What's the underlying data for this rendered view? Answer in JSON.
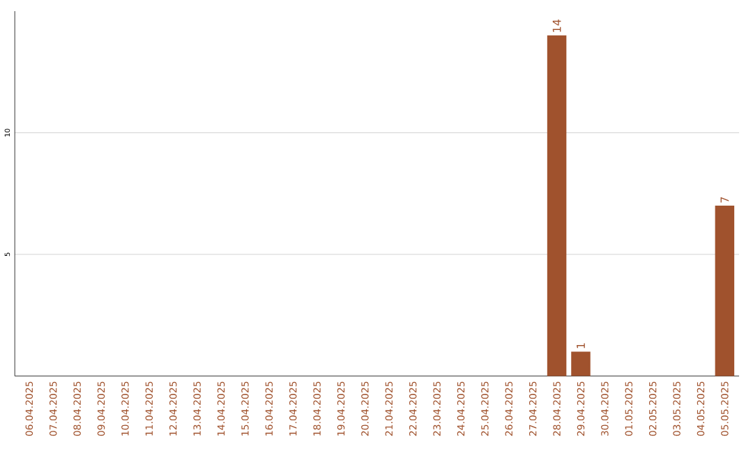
{
  "chart_data": {
    "type": "bar",
    "categories": [
      "06.04.2025",
      "07.04.2025",
      "08.04.2025",
      "09.04.2025",
      "10.04.2025",
      "11.04.2025",
      "12.04.2025",
      "13.04.2025",
      "14.04.2025",
      "15.04.2025",
      "16.04.2025",
      "17.04.2025",
      "18.04.2025",
      "19.04.2025",
      "20.04.2025",
      "21.04.2025",
      "22.04.2025",
      "23.04.2025",
      "24.04.2025",
      "25.04.2025",
      "26.04.2025",
      "27.04.2025",
      "28.04.2025",
      "29.04.2025",
      "30.04.2025",
      "01.05.2025",
      "02.05.2025",
      "03.05.2025",
      "04.05.2025",
      "05.05.2025"
    ],
    "values": [
      0,
      0,
      0,
      0,
      0,
      0,
      0,
      0,
      0,
      0,
      0,
      0,
      0,
      0,
      0,
      0,
      0,
      0,
      0,
      0,
      0,
      0,
      14,
      1,
      0,
      0,
      0,
      0,
      0,
      7
    ],
    "value_labels": [
      null,
      null,
      null,
      null,
      null,
      null,
      null,
      null,
      null,
      null,
      null,
      null,
      null,
      null,
      null,
      null,
      null,
      null,
      null,
      null,
      null,
      null,
      "14",
      "1",
      null,
      null,
      null,
      null,
      null,
      "7"
    ],
    "color": "#a0522d",
    "ylim": [
      0,
      15
    ],
    "yticks": [
      5,
      10
    ],
    "grid": "y"
  }
}
